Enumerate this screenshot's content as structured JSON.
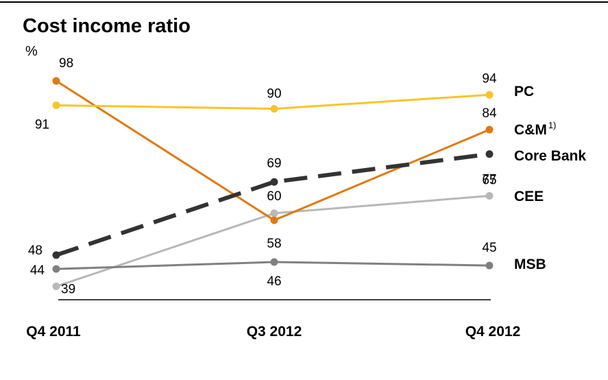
{
  "chart_data": {
    "type": "line",
    "title": "Cost income ratio",
    "unit": "%",
    "categories": [
      "Q4 2011",
      "Q3 2012",
      "Q4 2012"
    ],
    "series": [
      {
        "name": "PC",
        "values": [
          91,
          90,
          94
        ],
        "color": "#F8C42A",
        "style": "solid"
      },
      {
        "name": "C&M",
        "superscript": "1)",
        "values": [
          98,
          58,
          84
        ],
        "color": "#E07A10",
        "style": "solid"
      },
      {
        "name": "Core Bank",
        "values": [
          48,
          69,
          77
        ],
        "color": "#333333",
        "style": "dashed"
      },
      {
        "name": "CEE",
        "values": [
          39,
          60,
          65
        ],
        "color": "#B8B8B8",
        "style": "solid"
      },
      {
        "name": "MSB",
        "values": [
          44,
          46,
          45
        ],
        "color": "#808080",
        "style": "solid"
      }
    ],
    "legend": "right"
  }
}
